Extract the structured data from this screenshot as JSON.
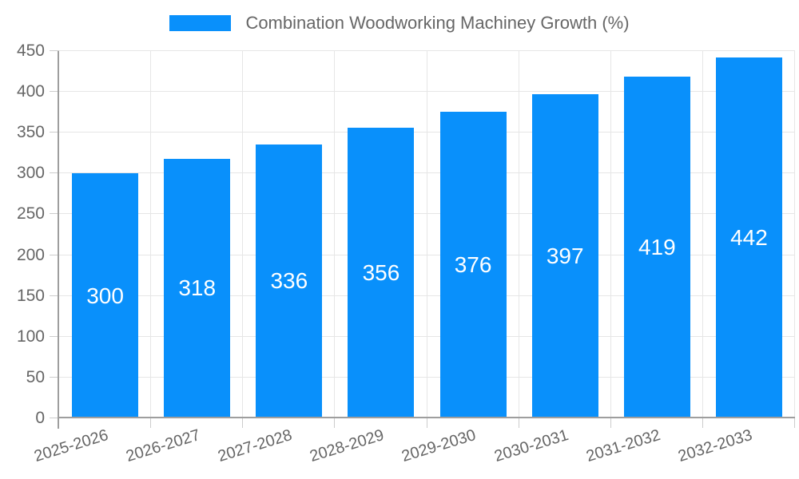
{
  "legend": {
    "series_label": "Combination Woodworking Machiney Growth (%)"
  },
  "chart_data": {
    "type": "bar",
    "title": "Combination Woodworking Machiney Growth (%)",
    "categories": [
      "2025-2026",
      "2026-2027",
      "2027-2028",
      "2028-2029",
      "2029-2030",
      "2030-2031",
      "2031-2032",
      "2032-2033"
    ],
    "values": [
      300,
      318,
      336,
      356,
      376,
      397,
      419,
      442
    ],
    "series": [
      {
        "name": "Combination Woodworking Machiney Growth (%)",
        "values": [
          300,
          318,
          336,
          356,
          376,
          397,
          419,
          442
        ]
      }
    ],
    "xlabel": "",
    "ylabel": "",
    "ylim": [
      0,
      450
    ],
    "ytick_step": 50,
    "yticks": [
      0,
      50,
      100,
      150,
      200,
      250,
      300,
      350,
      400,
      450
    ],
    "grid": "on",
    "legend_position": "top-center",
    "data_labels": "inside-middle"
  },
  "colors": {
    "bar": "#0990fb",
    "grid": "#e6e6e6",
    "axis_line": "#9e9e9e",
    "tick_mark": "#cccccc",
    "axis_text": "#666666",
    "title_text": "#666666",
    "data_label_text": "#ffffff",
    "background": "#ffffff"
  }
}
